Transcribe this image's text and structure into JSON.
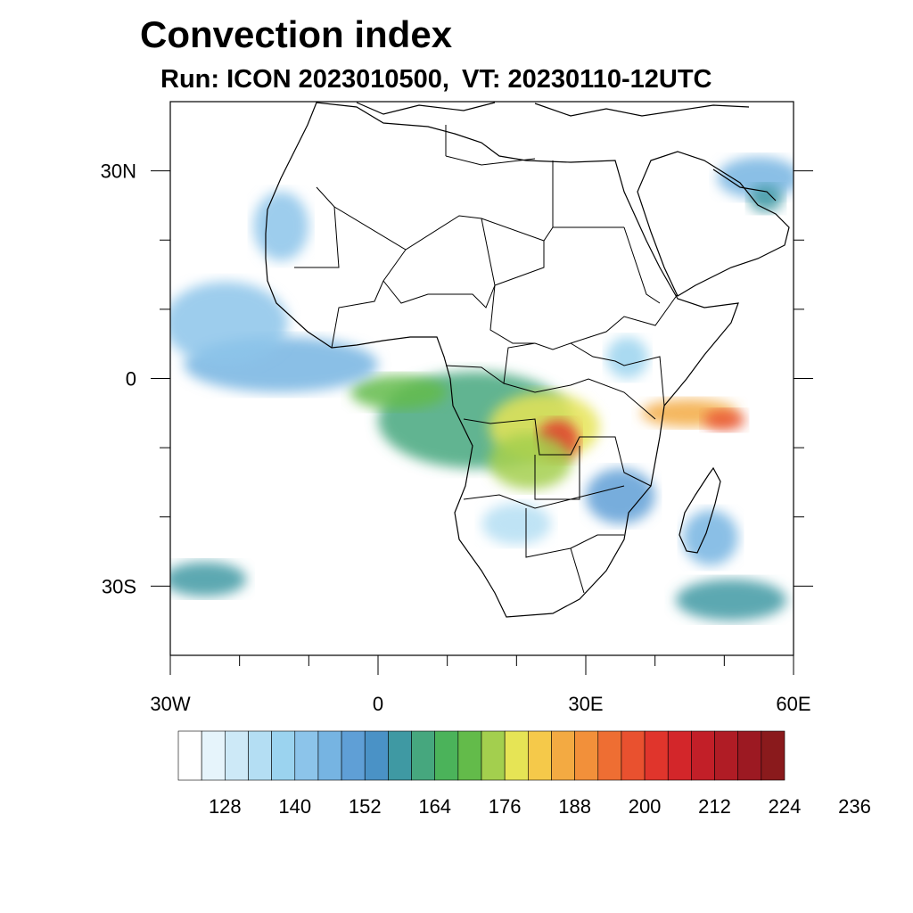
{
  "title": "Convection index",
  "subtitle": {
    "run": "Run: ICON 2023010500,",
    "vt": "VT: 20230110-12UTC"
  },
  "map": {
    "lon_range": [
      -30,
      60
    ],
    "lat_range": [
      -40,
      40
    ],
    "x_ticks": [
      {
        "value": -30,
        "label": "30W"
      },
      {
        "value": 0,
        "label": "0"
      },
      {
        "value": 30,
        "label": "30E"
      },
      {
        "value": 60,
        "label": "60E"
      }
    ],
    "y_ticks": [
      {
        "value": 30,
        "label": "30N"
      },
      {
        "value": 0,
        "label": "0"
      },
      {
        "value": -30,
        "label": "30S"
      }
    ],
    "minor_lon": [
      -20,
      -10,
      10,
      20,
      40,
      50
    ],
    "minor_lat": [
      20,
      10,
      -10,
      -20
    ]
  },
  "colorbar": {
    "colors": [
      "#ffffff",
      "#e6f4fb",
      "#cde9f7",
      "#b4def3",
      "#9bd3ef",
      "#8cc4ea",
      "#76b4e2",
      "#5f9fd6",
      "#4a92c6",
      "#3f99a3",
      "#46a77e",
      "#4bb35a",
      "#63bb4a",
      "#a3cf4e",
      "#e6e455",
      "#f5c94a",
      "#f3aa42",
      "#f2903a",
      "#ee6e33",
      "#e9512f",
      "#e0352c",
      "#d3262a",
      "#c21f28",
      "#b01c25",
      "#9c1922",
      "#8a1a1c"
    ],
    "labels": [
      "128",
      "140",
      "152",
      "164",
      "176",
      "188",
      "200",
      "212",
      "224",
      "236"
    ],
    "first_label_index": 2,
    "label_step": 3
  },
  "field": {
    "blobs": [
      {
        "lon": 14,
        "lat": -6,
        "rx": 14,
        "ry": 7,
        "level": 10
      },
      {
        "lon": 24,
        "lat": -7,
        "rx": 8,
        "ry": 5,
        "level": 14
      },
      {
        "lon": 26,
        "lat": -9,
        "rx": 3,
        "ry": 3,
        "level": 20
      },
      {
        "lon": 22,
        "lat": -12,
        "rx": 6,
        "ry": 4,
        "level": 13
      },
      {
        "lon": 45,
        "lat": -5,
        "rx": 7,
        "ry": 2,
        "level": 16
      },
      {
        "lon": 50,
        "lat": -6,
        "rx": 3,
        "ry": 1.5,
        "level": 19
      },
      {
        "lon": 3,
        "lat": -2,
        "rx": 7,
        "ry": 2.5,
        "level": 12
      },
      {
        "lon": -14,
        "lat": 2,
        "rx": 14,
        "ry": 4,
        "level": 6
      },
      {
        "lon": -22,
        "lat": 8,
        "rx": 9,
        "ry": 6,
        "level": 5
      },
      {
        "lon": -14,
        "lat": 22,
        "rx": 4,
        "ry": 5,
        "level": 5
      },
      {
        "lon": 55,
        "lat": 29,
        "rx": 6,
        "ry": 3,
        "level": 6
      },
      {
        "lon": 56,
        "lat": 26,
        "rx": 2.5,
        "ry": 2,
        "level": 9
      },
      {
        "lon": 51,
        "lat": -32,
        "rx": 8,
        "ry": 3,
        "level": 9
      },
      {
        "lon": 48,
        "lat": -23,
        "rx": 4,
        "ry": 4,
        "level": 6
      },
      {
        "lon": -25,
        "lat": -29,
        "rx": 6,
        "ry": 2.5,
        "level": 9
      },
      {
        "lon": 35,
        "lat": -17,
        "rx": 5,
        "ry": 4,
        "level": 7
      },
      {
        "lon": 36,
        "lat": 3,
        "rx": 3,
        "ry": 3,
        "level": 4
      },
      {
        "lon": 20,
        "lat": -21,
        "rx": 5,
        "ry": 3,
        "level": 3
      }
    ]
  }
}
